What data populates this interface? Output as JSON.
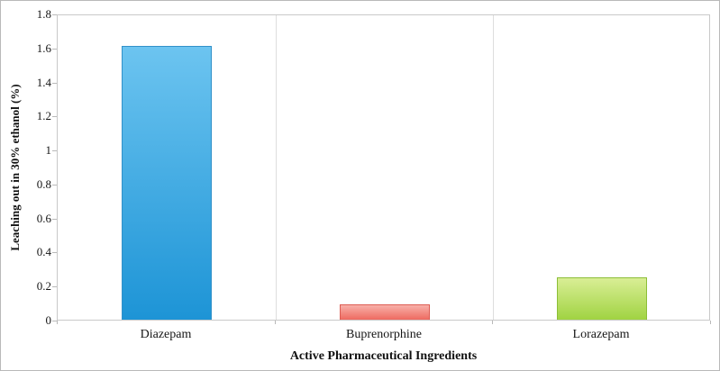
{
  "chart_data": {
    "type": "bar",
    "title": "",
    "xlabel": "Active Pharmaceutical Ingredients",
    "ylabel": "Leaching out in 30% ethanol (%)",
    "categories": [
      "Diazepam",
      "Buprenorphine",
      "Lorazepam"
    ],
    "values": [
      1.61,
      0.09,
      0.25
    ],
    "ylim": [
      0,
      1.8
    ],
    "ytick_labels": [
      "0",
      "0.2",
      "0.4",
      "0.6",
      "0.8",
      "1",
      "1.2",
      "1.4",
      "1.6",
      "1.8"
    ],
    "grid": "vertical-category-separators-only",
    "legend": "none",
    "bar_colors": [
      {
        "top": "#6cc4f0",
        "bottom": "#1d94d6",
        "border": "#3291c9"
      },
      {
        "top": "#f8b0a9",
        "bottom": "#ee6a60",
        "border": "#dd5c53"
      },
      {
        "top": "#d9ee95",
        "bottom": "#a0d342",
        "border": "#8cbe37"
      }
    ]
  }
}
